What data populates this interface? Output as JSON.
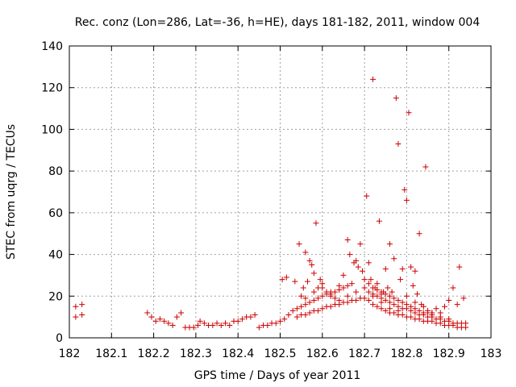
{
  "chart_data": {
    "type": "scatter",
    "title": "Rec. conz (Lon=286, Lat=-36, h=HE), days 181-182, 2011, window 004",
    "xlabel": "GPS time / Days of year 2011",
    "ylabel": "STEC from uqrg / TECUs",
    "xlim": [
      182,
      183
    ],
    "ylim": [
      0,
      140
    ],
    "xticks": [
      182,
      182.1,
      182.2,
      182.3,
      182.4,
      182.5,
      182.6,
      182.7,
      182.8,
      182.9,
      183
    ],
    "xtick_labels": [
      "182",
      "182.1",
      "182.2",
      "182.3",
      "182.4",
      "182.5",
      "182.6",
      "182.7",
      "182.8",
      "182.9",
      "183"
    ],
    "yticks": [
      0,
      20,
      40,
      60,
      80,
      100,
      120,
      140
    ],
    "ytick_labels": [
      "0",
      "20",
      "40",
      "60",
      "80",
      "100",
      "120",
      "140"
    ],
    "grid": true,
    "marker": "plus",
    "color": "#cc0000",
    "series": [
      {
        "name": "",
        "points": [
          [
            182.015,
            15
          ],
          [
            182.015,
            10
          ],
          [
            182.03,
            16
          ],
          [
            182.03,
            11
          ],
          [
            182.185,
            12
          ],
          [
            182.195,
            10
          ],
          [
            182.205,
            8
          ],
          [
            182.215,
            9
          ],
          [
            182.225,
            8
          ],
          [
            182.235,
            7
          ],
          [
            182.245,
            6
          ],
          [
            182.255,
            10
          ],
          [
            182.265,
            12
          ],
          [
            182.275,
            5
          ],
          [
            182.285,
            5
          ],
          [
            182.295,
            5
          ],
          [
            182.305,
            6
          ],
          [
            182.31,
            8
          ],
          [
            182.32,
            7
          ],
          [
            182.33,
            6
          ],
          [
            182.34,
            6
          ],
          [
            182.35,
            7
          ],
          [
            182.36,
            6
          ],
          [
            182.37,
            7
          ],
          [
            182.38,
            6
          ],
          [
            182.39,
            8
          ],
          [
            182.4,
            8
          ],
          [
            182.41,
            9
          ],
          [
            182.42,
            10
          ],
          [
            182.43,
            10
          ],
          [
            182.44,
            11
          ],
          [
            182.45,
            5
          ],
          [
            182.46,
            6
          ],
          [
            182.47,
            6
          ],
          [
            182.48,
            7
          ],
          [
            182.49,
            7
          ],
          [
            182.5,
            8
          ],
          [
            182.505,
            28
          ],
          [
            182.51,
            9
          ],
          [
            182.515,
            29
          ],
          [
            182.52,
            11
          ],
          [
            182.53,
            13
          ],
          [
            182.535,
            27
          ],
          [
            182.545,
            45
          ],
          [
            182.55,
            20
          ],
          [
            182.555,
            24
          ],
          [
            182.56,
            41
          ],
          [
            182.565,
            27
          ],
          [
            182.57,
            37
          ],
          [
            182.575,
            35
          ],
          [
            182.58,
            31
          ],
          [
            182.585,
            55
          ],
          [
            182.59,
            24
          ],
          [
            182.595,
            28
          ],
          [
            182.6,
            26
          ],
          [
            182.61,
            22
          ],
          [
            182.62,
            20
          ],
          [
            182.63,
            19
          ],
          [
            182.64,
            25
          ],
          [
            182.65,
            30
          ],
          [
            182.66,
            47
          ],
          [
            182.665,
            40
          ],
          [
            182.67,
            26
          ],
          [
            182.675,
            36
          ],
          [
            182.68,
            37
          ],
          [
            182.685,
            34
          ],
          [
            182.69,
            45
          ],
          [
            182.695,
            32
          ],
          [
            182.7,
            28
          ],
          [
            182.705,
            68
          ],
          [
            182.71,
            36
          ],
          [
            182.715,
            28
          ],
          [
            182.72,
            124
          ],
          [
            182.725,
            24
          ],
          [
            182.73,
            26
          ],
          [
            182.735,
            56
          ],
          [
            182.74,
            21
          ],
          [
            182.745,
            22
          ],
          [
            182.75,
            33
          ],
          [
            182.755,
            24
          ],
          [
            182.76,
            45
          ],
          [
            182.765,
            22
          ],
          [
            182.77,
            38
          ],
          [
            182.775,
            115
          ],
          [
            182.78,
            93
          ],
          [
            182.785,
            28
          ],
          [
            182.79,
            33
          ],
          [
            182.795,
            71
          ],
          [
            182.8,
            66
          ],
          [
            182.805,
            108
          ],
          [
            182.81,
            34
          ],
          [
            182.815,
            25
          ],
          [
            182.82,
            32
          ],
          [
            182.825,
            21
          ],
          [
            182.83,
            50
          ],
          [
            182.835,
            16
          ],
          [
            182.845,
            82
          ],
          [
            182.85,
            13
          ],
          [
            182.86,
            12
          ],
          [
            182.87,
            14
          ],
          [
            182.88,
            12
          ],
          [
            182.89,
            15
          ],
          [
            182.9,
            18
          ],
          [
            182.91,
            24
          ],
          [
            182.92,
            16
          ],
          [
            182.925,
            34
          ],
          [
            182.935,
            19
          ],
          [
            182.94,
            7
          ],
          [
            182.54,
            10
          ],
          [
            182.55,
            11
          ],
          [
            182.56,
            11
          ],
          [
            182.57,
            12
          ],
          [
            182.58,
            13
          ],
          [
            182.59,
            13
          ],
          [
            182.6,
            14
          ],
          [
            182.61,
            15
          ],
          [
            182.62,
            15
          ],
          [
            182.63,
            16
          ],
          [
            182.64,
            16
          ],
          [
            182.65,
            17
          ],
          [
            182.66,
            17
          ],
          [
            182.67,
            18
          ],
          [
            182.68,
            18
          ],
          [
            182.69,
            19
          ],
          [
            182.7,
            19
          ],
          [
            182.54,
            14
          ],
          [
            182.55,
            15
          ],
          [
            182.56,
            16
          ],
          [
            182.57,
            17
          ],
          [
            182.58,
            18
          ],
          [
            182.59,
            19
          ],
          [
            182.6,
            20
          ],
          [
            182.61,
            21
          ],
          [
            182.62,
            22
          ],
          [
            182.63,
            22
          ],
          [
            182.64,
            23
          ],
          [
            182.65,
            24
          ],
          [
            182.66,
            25
          ],
          [
            182.71,
            18
          ],
          [
            182.72,
            16
          ],
          [
            182.73,
            15
          ],
          [
            182.74,
            14
          ],
          [
            182.75,
            13
          ],
          [
            182.76,
            12
          ],
          [
            182.77,
            12
          ],
          [
            182.78,
            11
          ],
          [
            182.79,
            11
          ],
          [
            182.8,
            10
          ],
          [
            182.81,
            10
          ],
          [
            182.82,
            9
          ],
          [
            182.83,
            9
          ],
          [
            182.84,
            8
          ],
          [
            182.85,
            8
          ],
          [
            182.86,
            8
          ],
          [
            182.87,
            7
          ],
          [
            182.88,
            7
          ],
          [
            182.89,
            6
          ],
          [
            182.9,
            6
          ],
          [
            182.91,
            6
          ],
          [
            182.92,
            5
          ],
          [
            182.93,
            5
          ],
          [
            182.94,
            5
          ],
          [
            182.71,
            22
          ],
          [
            182.72,
            21
          ],
          [
            182.73,
            20
          ],
          [
            182.74,
            19
          ],
          [
            182.75,
            18
          ],
          [
            182.76,
            17
          ],
          [
            182.77,
            16
          ],
          [
            182.78,
            15
          ],
          [
            182.79,
            14
          ],
          [
            182.8,
            14
          ],
          [
            182.81,
            13
          ],
          [
            182.82,
            12
          ],
          [
            182.83,
            11
          ],
          [
            182.84,
            11
          ],
          [
            182.85,
            10
          ],
          [
            182.86,
            10
          ],
          [
            182.87,
            9
          ],
          [
            182.88,
            9
          ],
          [
            182.89,
            8
          ],
          [
            182.9,
            8
          ],
          [
            182.91,
            7
          ],
          [
            182.92,
            7
          ],
          [
            182.93,
            7
          ],
          [
            182.71,
            26
          ],
          [
            182.72,
            24
          ],
          [
            182.73,
            23
          ],
          [
            182.74,
            22
          ],
          [
            182.75,
            21
          ],
          [
            182.76,
            20
          ],
          [
            182.77,
            19
          ],
          [
            182.78,
            18
          ],
          [
            182.79,
            17
          ],
          [
            182.8,
            16
          ],
          [
            182.81,
            15
          ],
          [
            182.82,
            14
          ],
          [
            182.83,
            13
          ],
          [
            182.84,
            12
          ],
          [
            182.85,
            12
          ],
          [
            182.86,
            11
          ],
          [
            182.56,
            19
          ],
          [
            182.58,
            22
          ],
          [
            182.6,
            24
          ],
          [
            182.62,
            21
          ],
          [
            182.64,
            18
          ],
          [
            182.66,
            20
          ],
          [
            182.68,
            22
          ],
          [
            182.7,
            24
          ],
          [
            182.72,
            20
          ],
          [
            182.74,
            17
          ],
          [
            182.76,
            14
          ],
          [
            182.78,
            13
          ],
          [
            182.8,
            20
          ],
          [
            182.82,
            17
          ],
          [
            182.84,
            15
          ],
          [
            182.86,
            12
          ],
          [
            182.88,
            10
          ],
          [
            182.9,
            9
          ]
        ]
      }
    ]
  }
}
